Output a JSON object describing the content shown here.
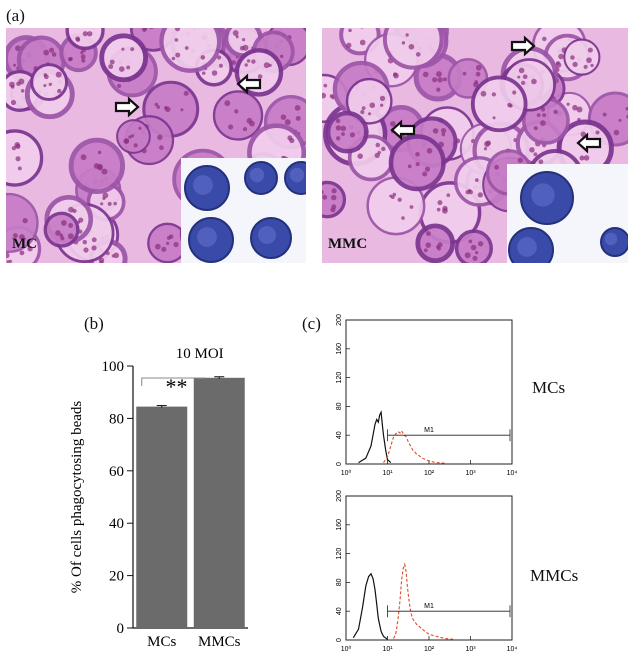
{
  "figure": {
    "panel_a": {
      "letter": "(a)",
      "left_label": "MC",
      "right_label": "MMC"
    },
    "panel_b": {
      "letter": "(b)",
      "annotation": "10 MOI",
      "significance": "**"
    },
    "panel_c": {
      "letter": "(c)",
      "gate_label": "M1",
      "row_labels": [
        "MCs",
        "MMCs"
      ],
      "y_ticks": [
        "0",
        "40",
        "80",
        "120",
        "160",
        "200"
      ],
      "x_ticks": [
        "10⁰",
        "10¹",
        "10²",
        "10³",
        "10⁴"
      ]
    }
  },
  "colors": {
    "bar": "#6b6b6b",
    "micro_pink": "#e6a8dc",
    "micro_purple": "#8a3a9a",
    "inset_blue": "#3a4aa8",
    "flow_red": "#e0482a"
  },
  "chart_data": [
    {
      "type": "bar",
      "categories": [
        "MCs",
        "MMCs"
      ],
      "values": [
        84.5,
        95.5
      ],
      "errors": [
        0.4,
        0.4
      ],
      "ylabel": "% Of cells phagocytosing beads",
      "ylim": [
        0,
        100
      ],
      "yticks": [
        0,
        20,
        40,
        60,
        80,
        100
      ],
      "grid": false,
      "annotations": [
        "10 MOI",
        "**"
      ]
    },
    {
      "type": "line",
      "xscale": "log",
      "xlim": [
        1,
        10000
      ],
      "ylim": [
        0,
        200
      ],
      "series": [
        {
          "color": "black",
          "x": [
            2,
            3,
            4,
            5,
            5.5,
            6,
            6.5,
            7,
            7.5,
            8,
            9,
            10,
            12
          ],
          "y": [
            2,
            8,
            25,
            55,
            62,
            58,
            68,
            72,
            55,
            40,
            20,
            6,
            2
          ]
        },
        {
          "color": "red-dashed",
          "x": [
            8,
            10,
            12,
            14,
            16,
            18,
            20,
            22,
            25,
            28,
            32,
            36,
            40,
            50,
            70,
            100,
            150,
            250
          ],
          "y": [
            2,
            10,
            25,
            38,
            42,
            45,
            43,
            46,
            40,
            38,
            30,
            25,
            20,
            14,
            8,
            4,
            2,
            1
          ]
        }
      ],
      "gate": {
        "label": "M1",
        "x": [
          10,
          10000
        ]
      }
    },
    {
      "type": "line",
      "xscale": "log",
      "xlim": [
        1,
        10000
      ],
      "ylim": [
        0,
        200
      ],
      "series": [
        {
          "color": "black",
          "x": [
            1.5,
            2,
            2.5,
            3,
            3.5,
            4,
            4.5,
            5,
            5.5,
            6,
            7,
            8,
            10
          ],
          "y": [
            3,
            15,
            45,
            75,
            88,
            92,
            85,
            70,
            50,
            30,
            12,
            5,
            1
          ]
        },
        {
          "color": "red-dashed",
          "x": [
            14,
            16,
            18,
            20,
            22,
            24,
            26,
            28,
            30,
            33,
            36,
            40,
            50,
            60,
            80,
            100,
            150,
            250,
            400
          ],
          "y": [
            2,
            10,
            30,
            55,
            85,
            100,
            105,
            95,
            75,
            55,
            40,
            30,
            22,
            18,
            12,
            8,
            5,
            2,
            1
          ]
        }
      ],
      "gate": {
        "label": "M1",
        "x": [
          10,
          10000
        ]
      }
    }
  ]
}
